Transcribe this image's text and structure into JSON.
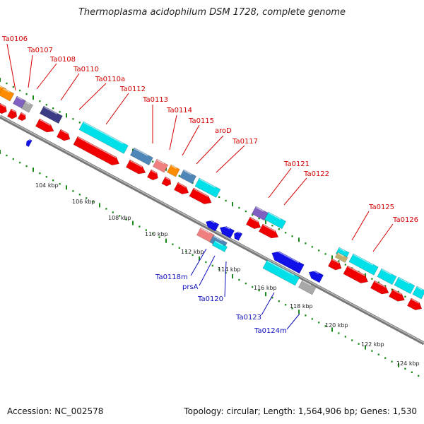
{
  "title": "Thermoplasma acidophilum DSM 1728, complete genome",
  "footer": {
    "accession": "Accession: NC_002578",
    "summary": "Topology: circular; Length: 1,564,906 bp; Genes: 1,530"
  },
  "colors": {
    "label_forward": "#d40000",
    "label_reverse": "#1010c0",
    "backbone": "#777777",
    "tick_green": "#1a8a1a",
    "red": "#f00000",
    "cyan": "#00e0e8",
    "blue": "#1010e8",
    "steelblue": "#4f86b8",
    "orange": "#ff8c00",
    "pink": "#f08080",
    "grey": "#a8a8a8",
    "darkslate": "#3c3c84",
    "purple": "#8060c0",
    "khaki": "#c0b070"
  },
  "scale_labels": [
    "104 kbp",
    "106 kbp",
    "108 kbp",
    "110 kbp",
    "112 kbp",
    "114 kbp",
    "116 kbp",
    "118 kbp",
    "120 kbp",
    "122 kbp",
    "124 kbp"
  ],
  "forward_labels": [
    "Ta0106",
    "Ta0107",
    "Ta0108",
    "Ta0110",
    "Ta0110a",
    "Ta0112",
    "Ta0113",
    "Ta0114",
    "Ta0115",
    "aroD",
    "Ta0117",
    "Ta0121",
    "Ta0122",
    "Ta0125",
    "Ta0126"
  ],
  "reverse_labels": [
    "Ta0118m",
    "prsA",
    "Ta0120",
    "Ta0123",
    "Ta0124m"
  ]
}
